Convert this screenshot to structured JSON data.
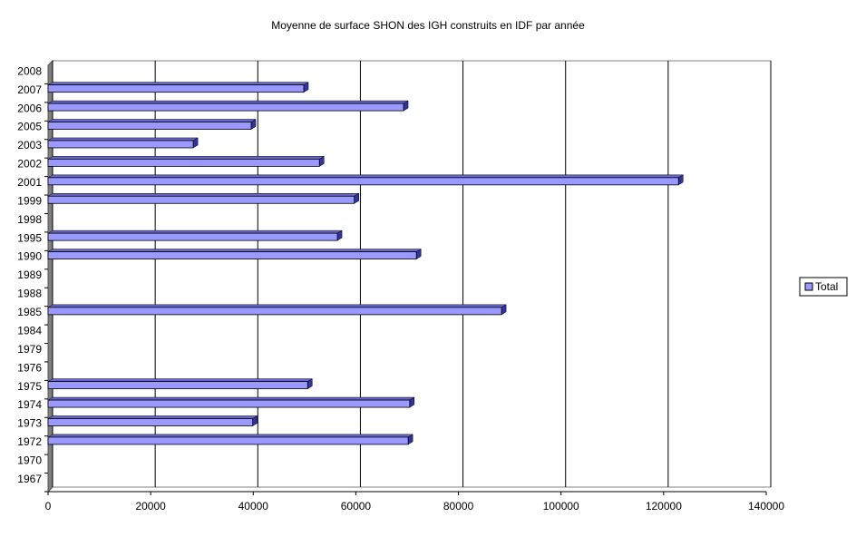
{
  "chart_data": {
    "type": "bar",
    "orientation": "horizontal",
    "title": "Moyenne de surface SHON des IGH construits en IDF par année",
    "categories": [
      "1967",
      "1970",
      "1972",
      "1973",
      "1974",
      "1975",
      "1976",
      "1979",
      "1984",
      "1985",
      "1988",
      "1989",
      "1990",
      "1995",
      "1998",
      "1999",
      "2001",
      "2002",
      "2003",
      "2005",
      "2006",
      "2007",
      "2008"
    ],
    "series": [
      {
        "name": "Total",
        "color": "#9999ff",
        "values": [
          null,
          null,
          70200,
          39900,
          70500,
          50600,
          null,
          null,
          null,
          88400,
          null,
          null,
          71800,
          56400,
          null,
          59700,
          122900,
          52900,
          28300,
          39600,
          69300,
          49850,
          null
        ]
      }
    ],
    "xlim": [
      0,
      140000
    ],
    "xticks": [
      0,
      20000,
      40000,
      60000,
      80000,
      100000,
      120000,
      140000
    ],
    "grid": true,
    "legend": "right"
  }
}
